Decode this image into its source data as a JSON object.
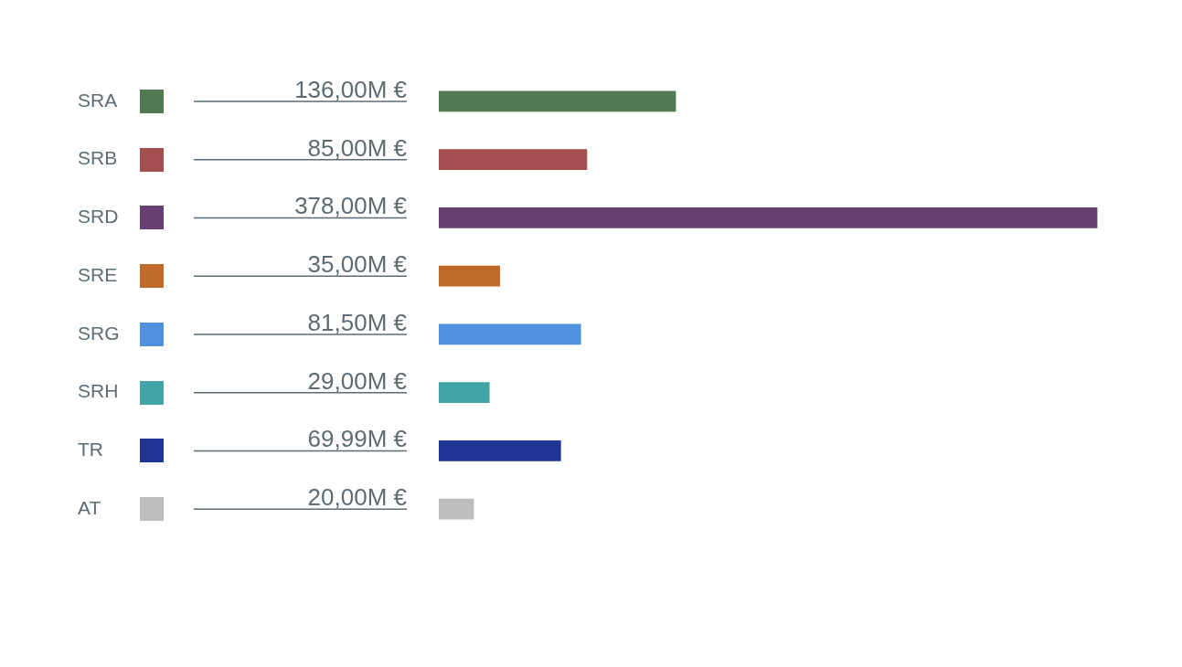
{
  "chart_data": {
    "type": "bar",
    "orientation": "horizontal",
    "categories": [
      "SRA",
      "SRB",
      "SRD",
      "SRE",
      "SRG",
      "SRH",
      "TR",
      "AT"
    ],
    "values": [
      136,
      85,
      378,
      35,
      81.5,
      29,
      69.99,
      20
    ],
    "colors": [
      "#527a52",
      "#a44f4f",
      "#663f73",
      "#c06a2a",
      "#5190dd",
      "#42a5a5",
      "#1f3593",
      "#bdbdbd"
    ],
    "value_labels": [
      "136,00M €",
      "85,00M €",
      "378,00M €",
      "35,00M €",
      "81,50M €",
      "29,00M €",
      "69,99M €",
      "20,00M €"
    ]
  }
}
